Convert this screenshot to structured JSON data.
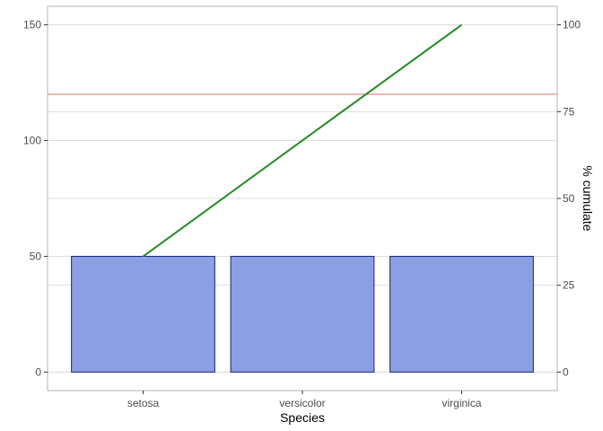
{
  "chart_data": {
    "type": "bar",
    "title": "",
    "xlabel": "Species",
    "ylabel": "",
    "y2label": "% cumulate",
    "categories": [
      "setosa",
      "versicolor",
      "virginica"
    ],
    "values": [
      50,
      50,
      50
    ],
    "ylim": [
      -8,
      158
    ],
    "y_ticks": [
      0,
      50,
      100,
      150
    ],
    "y2_ticks": [
      0,
      25,
      50,
      75,
      100
    ],
    "y2_scale": {
      "min": 0,
      "max": 100,
      "maps_to_y_min": 0,
      "maps_to_y_max": 150
    },
    "cumulative_percent": [
      33.3,
      66.7,
      100
    ],
    "reference_line_percent": 80,
    "grid": true,
    "colors": {
      "bar_fill": "#8aa0e2",
      "bar_stroke": "#1a237e",
      "cumulative_line": "#228b22",
      "reference_line": "#e07060",
      "grid": "#dedede",
      "panel_border": "#b3b3b3"
    }
  }
}
